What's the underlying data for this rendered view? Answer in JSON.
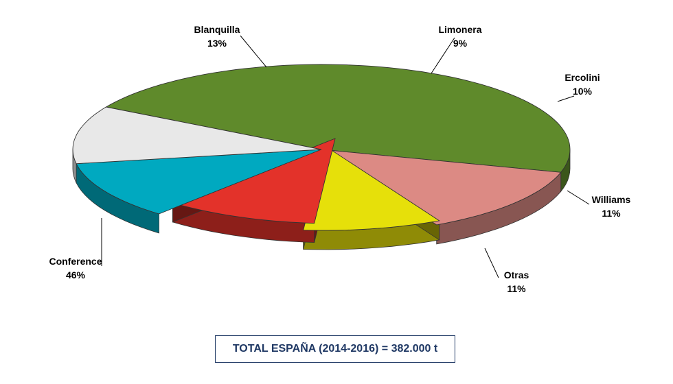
{
  "chart_data": {
    "type": "pie",
    "title": "",
    "slices": [
      {
        "label": "Conference",
        "value": 46,
        "value_label": "46%",
        "color": "#5f8a2b"
      },
      {
        "label": "Blanquilla",
        "value": 13,
        "value_label": "13%",
        "color": "#dc8a84"
      },
      {
        "label": "Limonera",
        "value": 9,
        "value_label": "9%",
        "color": "#e6e00a"
      },
      {
        "label": "Ercolini",
        "value": 10,
        "value_label": "10%",
        "color": "#e3322a"
      },
      {
        "label": "Williams",
        "value": 11,
        "value_label": "11%",
        "color": "#00a9c0"
      },
      {
        "label": "Otras",
        "value": 11,
        "value_label": "11%",
        "color": "#e8e8e8"
      }
    ],
    "legend": "none",
    "style": "3d-exploded"
  },
  "footer": {
    "total_text": "TOTAL ESPAÑA (2014-2016) = 382.000 t",
    "border_color": "#1f3864"
  }
}
